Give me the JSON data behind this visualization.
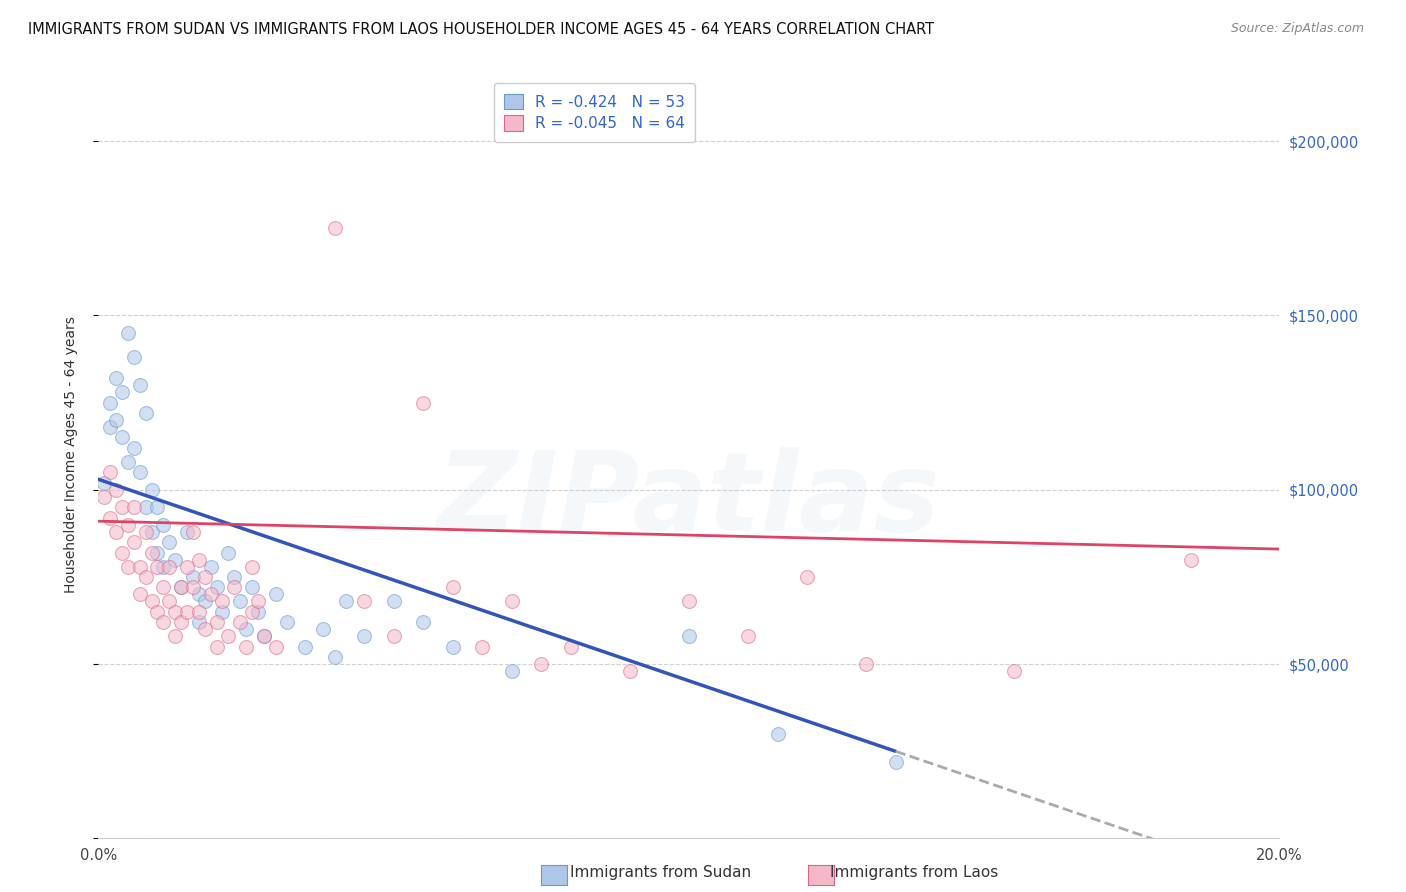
{
  "title": "IMMIGRANTS FROM SUDAN VS IMMIGRANTS FROM LAOS HOUSEHOLDER INCOME AGES 45 - 64 YEARS CORRELATION CHART",
  "source": "Source: ZipAtlas.com",
  "ylabel": "Householder Income Ages 45 - 64 years",
  "xlim": [
    0.0,
    0.2
  ],
  "ylim": [
    0,
    220000
  ],
  "sudan_color": "#aec6e8",
  "sudan_edge_color": "#6699cc",
  "laos_color": "#f4b8c8",
  "laos_edge_color": "#dd6688",
  "sudan_line_color": "#3355bb",
  "laos_line_color": "#dd4466",
  "dash_line_color": "#aaaaaa",
  "background_color": "#ffffff",
  "grid_color": "#cccccc",
  "watermark_color": "#99bbdd",
  "R_sudan": -0.424,
  "N_sudan": 53,
  "R_laos": -0.045,
  "N_laos": 64,
  "sudan_line_x0": 0.0,
  "sudan_line_y0": 103000,
  "sudan_line_x1": 0.135,
  "sudan_line_y1": 25000,
  "laos_line_x0": 0.0,
  "laos_line_y0": 91000,
  "laos_line_x1": 0.2,
  "laos_line_y1": 83000,
  "sudan_points": [
    [
      0.001,
      102000
    ],
    [
      0.002,
      125000
    ],
    [
      0.002,
      118000
    ],
    [
      0.003,
      132000
    ],
    [
      0.003,
      120000
    ],
    [
      0.004,
      115000
    ],
    [
      0.004,
      128000
    ],
    [
      0.005,
      145000
    ],
    [
      0.005,
      108000
    ],
    [
      0.006,
      138000
    ],
    [
      0.006,
      112000
    ],
    [
      0.007,
      130000
    ],
    [
      0.007,
      105000
    ],
    [
      0.008,
      122000
    ],
    [
      0.008,
      95000
    ],
    [
      0.009,
      100000
    ],
    [
      0.009,
      88000
    ],
    [
      0.01,
      95000
    ],
    [
      0.01,
      82000
    ],
    [
      0.011,
      90000
    ],
    [
      0.011,
      78000
    ],
    [
      0.012,
      85000
    ],
    [
      0.013,
      80000
    ],
    [
      0.014,
      72000
    ],
    [
      0.015,
      88000
    ],
    [
      0.016,
      75000
    ],
    [
      0.017,
      70000
    ],
    [
      0.017,
      62000
    ],
    [
      0.018,
      68000
    ],
    [
      0.019,
      78000
    ],
    [
      0.02,
      72000
    ],
    [
      0.021,
      65000
    ],
    [
      0.022,
      82000
    ],
    [
      0.023,
      75000
    ],
    [
      0.024,
      68000
    ],
    [
      0.025,
      60000
    ],
    [
      0.026,
      72000
    ],
    [
      0.027,
      65000
    ],
    [
      0.028,
      58000
    ],
    [
      0.03,
      70000
    ],
    [
      0.032,
      62000
    ],
    [
      0.035,
      55000
    ],
    [
      0.038,
      60000
    ],
    [
      0.04,
      52000
    ],
    [
      0.042,
      68000
    ],
    [
      0.045,
      58000
    ],
    [
      0.05,
      68000
    ],
    [
      0.055,
      62000
    ],
    [
      0.06,
      55000
    ],
    [
      0.07,
      48000
    ],
    [
      0.1,
      58000
    ],
    [
      0.115,
      30000
    ],
    [
      0.135,
      22000
    ]
  ],
  "laos_points": [
    [
      0.001,
      98000
    ],
    [
      0.002,
      92000
    ],
    [
      0.002,
      105000
    ],
    [
      0.003,
      88000
    ],
    [
      0.003,
      100000
    ],
    [
      0.004,
      95000
    ],
    [
      0.004,
      82000
    ],
    [
      0.005,
      90000
    ],
    [
      0.005,
      78000
    ],
    [
      0.006,
      95000
    ],
    [
      0.006,
      85000
    ],
    [
      0.007,
      78000
    ],
    [
      0.007,
      70000
    ],
    [
      0.008,
      88000
    ],
    [
      0.008,
      75000
    ],
    [
      0.009,
      82000
    ],
    [
      0.009,
      68000
    ],
    [
      0.01,
      78000
    ],
    [
      0.01,
      65000
    ],
    [
      0.011,
      72000
    ],
    [
      0.011,
      62000
    ],
    [
      0.012,
      68000
    ],
    [
      0.012,
      78000
    ],
    [
      0.013,
      65000
    ],
    [
      0.013,
      58000
    ],
    [
      0.014,
      72000
    ],
    [
      0.014,
      62000
    ],
    [
      0.015,
      78000
    ],
    [
      0.015,
      65000
    ],
    [
      0.016,
      88000
    ],
    [
      0.016,
      72000
    ],
    [
      0.017,
      80000
    ],
    [
      0.017,
      65000
    ],
    [
      0.018,
      75000
    ],
    [
      0.018,
      60000
    ],
    [
      0.019,
      70000
    ],
    [
      0.02,
      62000
    ],
    [
      0.02,
      55000
    ],
    [
      0.021,
      68000
    ],
    [
      0.022,
      58000
    ],
    [
      0.023,
      72000
    ],
    [
      0.024,
      62000
    ],
    [
      0.025,
      55000
    ],
    [
      0.026,
      65000
    ],
    [
      0.026,
      78000
    ],
    [
      0.027,
      68000
    ],
    [
      0.028,
      58000
    ],
    [
      0.03,
      55000
    ],
    [
      0.04,
      175000
    ],
    [
      0.045,
      68000
    ],
    [
      0.05,
      58000
    ],
    [
      0.055,
      125000
    ],
    [
      0.06,
      72000
    ],
    [
      0.065,
      55000
    ],
    [
      0.07,
      68000
    ],
    [
      0.075,
      50000
    ],
    [
      0.08,
      55000
    ],
    [
      0.09,
      48000
    ],
    [
      0.1,
      68000
    ],
    [
      0.11,
      58000
    ],
    [
      0.12,
      75000
    ],
    [
      0.13,
      50000
    ],
    [
      0.155,
      48000
    ],
    [
      0.185,
      80000
    ]
  ],
  "title_fontsize": 10.5,
  "source_fontsize": 9,
  "axis_label_fontsize": 10,
  "tick_fontsize": 10.5,
  "legend_fontsize": 11,
  "marker_size": 100,
  "marker_alpha": 0.55,
  "line_width": 2.0,
  "watermark_alpha": 0.1,
  "watermark_fontsize": 80
}
